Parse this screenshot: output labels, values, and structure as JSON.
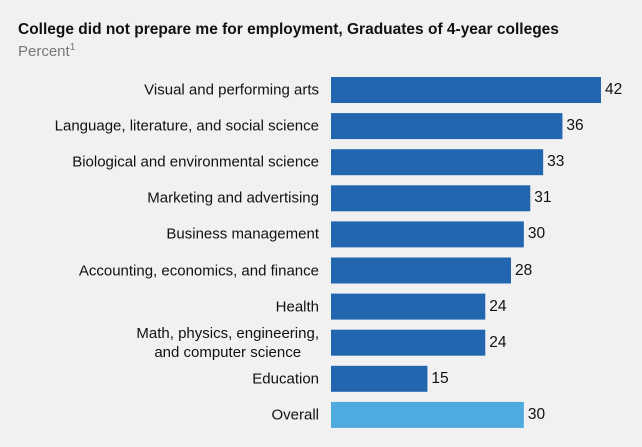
{
  "chart_data": {
    "type": "bar",
    "orientation": "horizontal",
    "title": "College did not prepare me for employment, Graduates of 4-year colleges",
    "subtitle": "Percent",
    "subtitle_note": "1",
    "categories": [
      "Visual and performing arts",
      "Language, literature, and social science",
      "Biological and environmental science",
      "Marketing and advertising",
      "Business management",
      "Accounting, economics, and finance",
      "Health",
      "Math, physics, engineering,\nand computer science",
      "Education",
      "Overall"
    ],
    "values": [
      42,
      36,
      33,
      31,
      30,
      28,
      24,
      24,
      15,
      30
    ],
    "colors": [
      "#2266b0",
      "#2266b0",
      "#2266b0",
      "#2266b0",
      "#2266b0",
      "#2266b0",
      "#2266b0",
      "#2266b0",
      "#2266b0",
      "#4eaadf"
    ]
  }
}
